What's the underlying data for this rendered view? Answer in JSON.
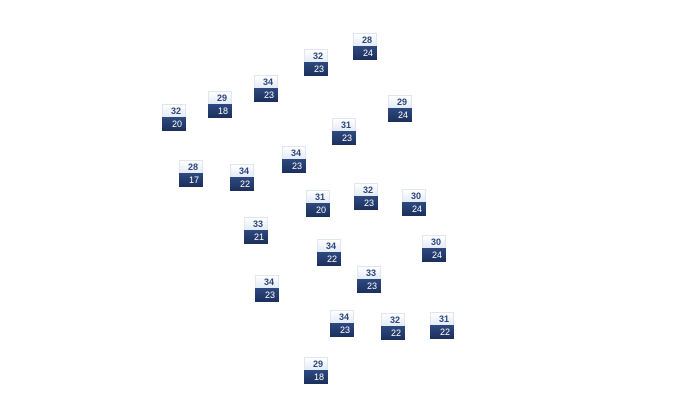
{
  "colors": {
    "high_bg": "#eef3fa",
    "high_text": "#2c4478",
    "low_bg": "#243d6e",
    "low_text": "#ffffff"
  },
  "stations": [
    {
      "high": "28",
      "low": "24"
    },
    {
      "high": "32",
      "low": "23"
    },
    {
      "high": "34",
      "low": "23"
    },
    {
      "high": "29",
      "low": "18"
    },
    {
      "high": "32",
      "low": "20"
    },
    {
      "high": "29",
      "low": "24"
    },
    {
      "high": "31",
      "low": "23"
    },
    {
      "high": "34",
      "low": "23"
    },
    {
      "high": "28",
      "low": "17"
    },
    {
      "high": "34",
      "low": "22"
    },
    {
      "high": "31",
      "low": "20"
    },
    {
      "high": "32",
      "low": "23"
    },
    {
      "high": "30",
      "low": "24"
    },
    {
      "high": "33",
      "low": "21"
    },
    {
      "high": "30",
      "low": "24"
    },
    {
      "high": "34",
      "low": "22"
    },
    {
      "high": "33",
      "low": "23"
    },
    {
      "high": "34",
      "low": "23"
    },
    {
      "high": "34",
      "low": "23"
    },
    {
      "high": "32",
      "low": "22"
    },
    {
      "high": "31",
      "low": "22"
    },
    {
      "high": "29",
      "low": "18"
    }
  ]
}
